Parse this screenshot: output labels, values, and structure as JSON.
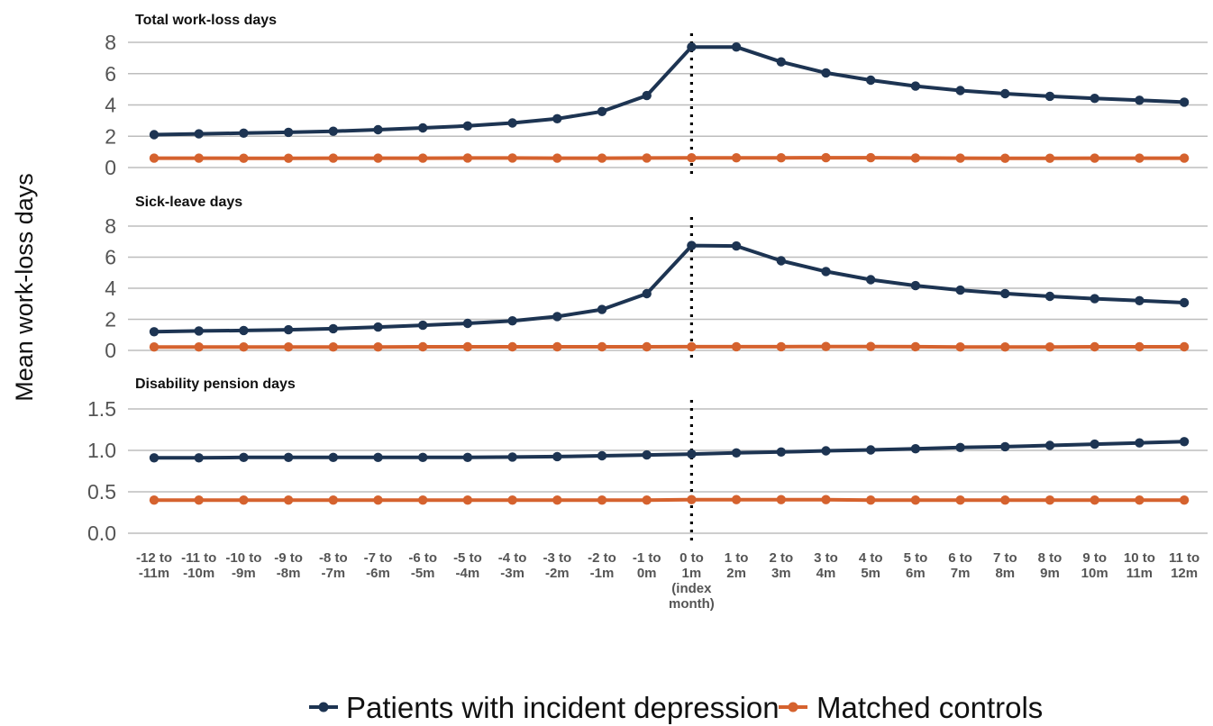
{
  "chart_data": {
    "type": "line",
    "ylabel": "Mean work-loss days",
    "categories": [
      [
        "-12 to",
        "-11m"
      ],
      [
        "-11 to",
        "-10m"
      ],
      [
        "-10 to",
        "-9m"
      ],
      [
        "-9 to",
        "-8m"
      ],
      [
        "-8 to",
        "-7m"
      ],
      [
        "-7 to",
        "-6m"
      ],
      [
        "-6 to",
        "-5m"
      ],
      [
        "-5 to",
        "-4m"
      ],
      [
        "-4 to",
        "-3m"
      ],
      [
        "-3 to",
        "-2m"
      ],
      [
        "-2 to",
        "-1m"
      ],
      [
        "-1 to",
        "0m"
      ],
      [
        "0 to",
        "1m",
        "(index",
        "month)"
      ],
      [
        "1 to",
        "2m"
      ],
      [
        "2 to",
        "3m"
      ],
      [
        "3 to",
        "4m"
      ],
      [
        "4 to",
        "5m"
      ],
      [
        "5 to",
        "6m"
      ],
      [
        "6 to",
        "7m"
      ],
      [
        "7 to",
        "8m"
      ],
      [
        "8 to",
        "9m"
      ],
      [
        "9 to",
        "10m"
      ],
      [
        "10 to",
        "11m"
      ],
      [
        "11 to",
        "12m"
      ]
    ],
    "index_category": 12,
    "legend": [
      {
        "name": "Patients with incident depression",
        "color": "#1d3452"
      },
      {
        "name": "Matched controls",
        "color": "#d5622e"
      }
    ],
    "legend_position": "bottom",
    "panels": [
      {
        "title": "Total work-loss days",
        "ylim": [
          0,
          8
        ],
        "yticks": [
          "0",
          "2",
          "4",
          "6",
          "8"
        ],
        "series": [
          {
            "name": "Patients with incident depression",
            "values": [
              2.1,
              2.15,
              2.2,
              2.25,
              2.32,
              2.42,
              2.53,
              2.66,
              2.85,
              3.12,
              3.58,
              4.6,
              7.7,
              7.7,
              6.75,
              6.05,
              5.58,
              5.2,
              4.92,
              4.72,
              4.55,
              4.42,
              4.3,
              4.18
            ]
          },
          {
            "name": "Matched controls",
            "values": [
              0.6,
              0.6,
              0.59,
              0.59,
              0.6,
              0.6,
              0.6,
              0.61,
              0.61,
              0.6,
              0.6,
              0.61,
              0.62,
              0.62,
              0.62,
              0.63,
              0.63,
              0.61,
              0.6,
              0.59,
              0.59,
              0.6,
              0.6,
              0.6
            ]
          }
        ]
      },
      {
        "title": "Sick-leave days",
        "ylim": [
          0,
          8
        ],
        "yticks": [
          "0",
          "2",
          "4",
          "6",
          "8"
        ],
        "series": [
          {
            "name": "Patients with incident depression",
            "values": [
              1.2,
              1.25,
              1.28,
              1.33,
              1.4,
              1.5,
              1.62,
              1.74,
              1.9,
              2.18,
              2.63,
              3.65,
              6.75,
              6.72,
              5.77,
              5.08,
              4.55,
              4.17,
              3.88,
              3.66,
              3.48,
              3.33,
              3.2,
              3.07
            ]
          },
          {
            "name": "Matched controls",
            "values": [
              0.22,
              0.22,
              0.22,
              0.22,
              0.22,
              0.22,
              0.23,
              0.23,
              0.23,
              0.23,
              0.23,
              0.23,
              0.24,
              0.24,
              0.24,
              0.25,
              0.25,
              0.24,
              0.22,
              0.22,
              0.22,
              0.23,
              0.23,
              0.23
            ]
          }
        ]
      },
      {
        "title": "Disability pension days",
        "ylim": [
          0,
          1.5
        ],
        "yticks": [
          "0.0",
          "0.5",
          "1.0",
          "1.5"
        ],
        "series": [
          {
            "name": "Patients with incident depression",
            "values": [
              0.91,
              0.91,
              0.915,
              0.915,
              0.915,
              0.915,
              0.915,
              0.915,
              0.92,
              0.925,
              0.935,
              0.945,
              0.955,
              0.97,
              0.98,
              0.995,
              1.005,
              1.02,
              1.035,
              1.045,
              1.06,
              1.075,
              1.09,
              1.105
            ]
          },
          {
            "name": "Matched controls",
            "values": [
              0.4,
              0.4,
              0.4,
              0.4,
              0.4,
              0.4,
              0.4,
              0.4,
              0.4,
              0.4,
              0.4,
              0.4,
              0.405,
              0.405,
              0.405,
              0.405,
              0.4,
              0.4,
              0.4,
              0.4,
              0.4,
              0.4,
              0.4,
              0.4
            ]
          }
        ]
      }
    ]
  }
}
